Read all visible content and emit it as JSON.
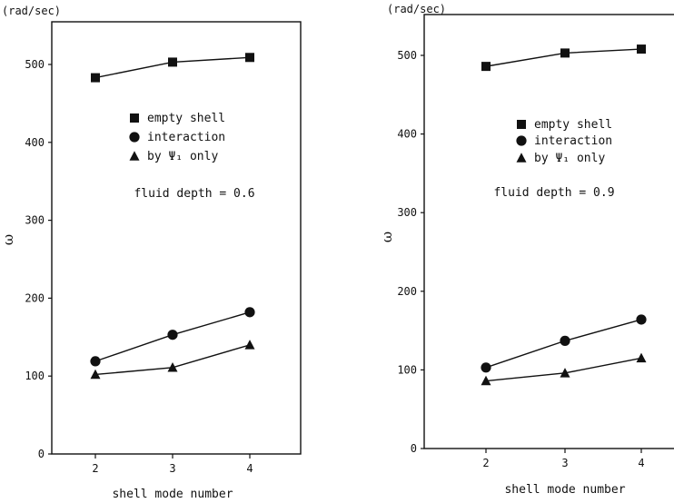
{
  "chart_data": [
    {
      "type": "line",
      "unit_label": "(rad/sec)",
      "ylabel": "ω",
      "xlabel": "shell mode number",
      "categories": [
        "2",
        "3",
        "4"
      ],
      "x": [
        2,
        3,
        4
      ],
      "ylim": [
        0,
        550
      ],
      "yticks": [
        "0",
        "100",
        "200",
        "300",
        "400",
        "500"
      ],
      "annotation": "fluid depth = 0.6",
      "legend_position": "center",
      "series": [
        {
          "name": "empty shell",
          "marker": "square",
          "values": [
            483,
            503,
            509
          ]
        },
        {
          "name": "interaction",
          "marker": "circle",
          "values": [
            119,
            153,
            182
          ]
        },
        {
          "name": "by Ψ₁ only",
          "marker": "triangle",
          "values": [
            102,
            111,
            140
          ]
        }
      ],
      "grid": false
    },
    {
      "type": "line",
      "unit_label": "(rad/sec)",
      "ylabel": "ω",
      "xlabel": "shell mode number",
      "categories": [
        "2",
        "3",
        "4"
      ],
      "x": [
        2,
        3,
        4
      ],
      "ylim": [
        0,
        550
      ],
      "yticks": [
        "0",
        "100",
        "200",
        "300",
        "400",
        "500"
      ],
      "annotation": "fluid depth = 0.9",
      "legend_position": "center",
      "series": [
        {
          "name": "empty shell",
          "marker": "square",
          "values": [
            486,
            503,
            508
          ]
        },
        {
          "name": "interaction",
          "marker": "circle",
          "values": [
            103,
            137,
            164
          ]
        },
        {
          "name": "by Ψ₁ only",
          "marker": "triangle",
          "values": [
            86,
            96,
            115
          ]
        }
      ],
      "grid": false
    }
  ],
  "colors": {
    "ink": "#111111",
    "background": "#ffffff"
  }
}
